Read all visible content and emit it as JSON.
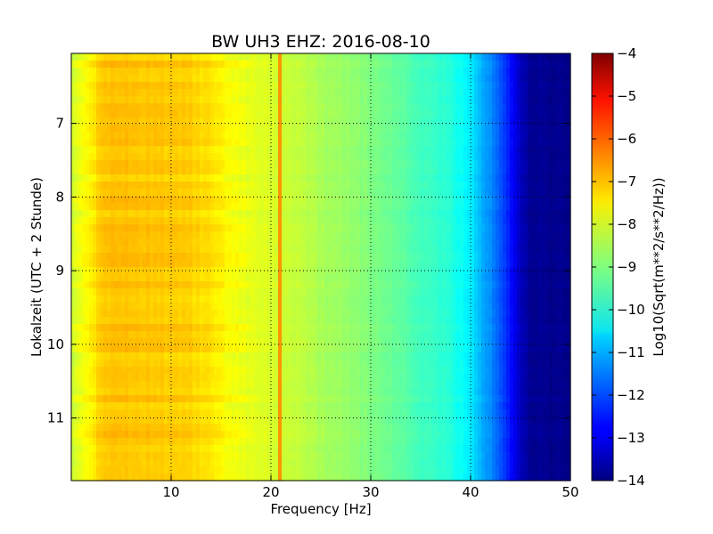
{
  "chart_data": {
    "type": "heatmap",
    "title": "BW UH3 EHZ: 2016-08-10",
    "xlabel": "Frequency [Hz]",
    "ylabel": "Lokalzeit (UTC + 2 Stunde)",
    "xlim": [
      0,
      50
    ],
    "ylim": [
      6.05,
      11.85
    ],
    "y_inverted": true,
    "x_ticks": [
      10,
      20,
      30,
      40,
      50
    ],
    "y_ticks": [
      7,
      8,
      9,
      10,
      11
    ],
    "grid": true,
    "colormap": "jet",
    "colorbar": {
      "label": "Log10(Sqrt(m**2/s**2/Hz))",
      "range": [
        -14,
        -4
      ],
      "ticks": [
        -4,
        -5,
        -6,
        -7,
        -8,
        -9,
        -10,
        -11,
        -12,
        -13,
        -14
      ]
    },
    "frequency_profile": [
      {
        "f": 0,
        "value": -8.2
      },
      {
        "f": 0.5,
        "value": -8.1
      },
      {
        "f": 1,
        "value": -7.9
      },
      {
        "f": 2,
        "value": -7.6
      },
      {
        "f": 3,
        "value": -7.2
      },
      {
        "f": 5,
        "value": -7.15
      },
      {
        "f": 8,
        "value": -7.2
      },
      {
        "f": 12,
        "value": -7.3
      },
      {
        "f": 14,
        "value": -7.5
      },
      {
        "f": 16,
        "value": -7.8
      },
      {
        "f": 18,
        "value": -8.0
      },
      {
        "f": 20,
        "value": -8.1
      },
      {
        "f": 22,
        "value": -8.3
      },
      {
        "f": 25,
        "value": -8.6
      },
      {
        "f": 28,
        "value": -8.8
      },
      {
        "f": 30,
        "value": -9.0
      },
      {
        "f": 33,
        "value": -9.3
      },
      {
        "f": 35,
        "value": -9.6
      },
      {
        "f": 38,
        "value": -9.9
      },
      {
        "f": 40,
        "value": -10.4
      },
      {
        "f": 41,
        "value": -11.0
      },
      {
        "f": 42,
        "value": -11.4
      },
      {
        "f": 43,
        "value": -11.9
      },
      {
        "f": 44,
        "value": -12.6
      },
      {
        "f": 45,
        "value": -13.4
      },
      {
        "f": 46,
        "value": -13.8
      },
      {
        "f": 50,
        "value": -13.9
      }
    ],
    "spectral_line": {
      "frequency_hz": 20.9,
      "value": -6.7
    }
  }
}
